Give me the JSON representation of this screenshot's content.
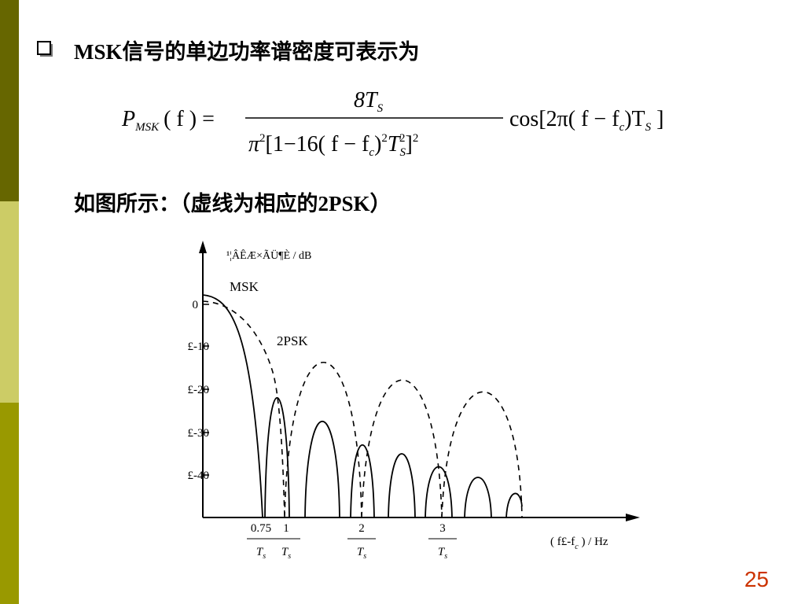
{
  "header": {
    "title": "MSK信号的单边功率谱密度可表示为"
  },
  "formula": {
    "lhs": [
      "P",
      "MSK",
      "( f ) ="
    ],
    "numerator": [
      "8T",
      "S"
    ],
    "denominator": [
      "π",
      "2",
      "[1−16( f − f",
      "c",
      ")",
      "2",
      "T",
      "S",
      "2",
      "]",
      "2"
    ],
    "rhs": [
      "cos[2π( f − f",
      "c",
      ")T",
      "S",
      " ]"
    ]
  },
  "subtitle": "如图所示：（虚线为相应的2PSK）",
  "figure": {
    "y_axis_label": "¹¦ÂÊÆ×ÃÜ¶È / dB",
    "curve_labels": [
      "MSK",
      "2PSK"
    ],
    "y_tick_labels": [
      "0",
      "£-10",
      "£-20",
      "£-30",
      "£-40"
    ],
    "x_tick_labels": [
      [
        "0.75",
        "T",
        "s"
      ],
      [
        "1",
        "T",
        "s"
      ],
      [
        "2",
        "T",
        "s"
      ],
      [
        "3",
        "T",
        "s"
      ]
    ],
    "x_axis_label": [
      "( f£-f",
      "c",
      " ) / Hz"
    ]
  },
  "page_number": "25"
}
